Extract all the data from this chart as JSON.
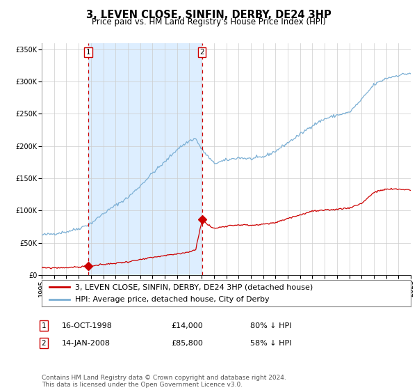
{
  "title": "3, LEVEN CLOSE, SINFIN, DERBY, DE24 3HP",
  "subtitle": "Price paid vs. HM Land Registry's House Price Index (HPI)",
  "x_start_year": 1995,
  "x_end_year": 2025,
  "ylim": [
    0,
    360000
  ],
  "yticks": [
    0,
    50000,
    100000,
    150000,
    200000,
    250000,
    300000,
    350000
  ],
  "ytick_labels": [
    "£0",
    "£50K",
    "£100K",
    "£150K",
    "£200K",
    "£250K",
    "£300K",
    "£350K"
  ],
  "sale1_date_year": 1998.79,
  "sale1_price": 14000,
  "sale2_date_year": 2008.04,
  "sale2_price": 85800,
  "sale1_label": "1",
  "sale2_label": "2",
  "legend_line1": "3, LEVEN CLOSE, SINFIN, DERBY, DE24 3HP (detached house)",
  "legend_line2": "HPI: Average price, detached house, City of Derby",
  "sale1_date_str": "16-OCT-1998",
  "sale2_date_str": "14-JAN-2008",
  "sale1_price_str": "£14,000",
  "sale2_price_str": "£85,800",
  "sale1_hpi_str": "80% ↓ HPI",
  "sale2_hpi_str": "58% ↓ HPI",
  "footer": "Contains HM Land Registry data © Crown copyright and database right 2024.\nThis data is licensed under the Open Government Licence v3.0.",
  "line1_color": "#cc0000",
  "line2_color": "#7bafd4",
  "shade_color": "#ddeeff",
  "vline_color": "#cc0000",
  "bg_color": "#ffffff",
  "grid_color": "#cccccc",
  "title_fontsize": 10.5,
  "subtitle_fontsize": 8.5,
  "tick_fontsize": 7,
  "legend_fontsize": 8,
  "footer_fontsize": 6.5,
  "hpi_waypoints_x": [
    1995,
    1996,
    1997,
    1998,
    1999,
    2000,
    2001,
    2002,
    2003,
    2004,
    2005,
    2006,
    2007,
    2007.5,
    2008,
    2009,
    2010,
    2011,
    2012,
    2013,
    2014,
    2015,
    2016,
    2017,
    2018,
    2019,
    2020,
    2021,
    2022,
    2023,
    2024,
    2025
  ],
  "hpi_waypoints_y": [
    62000,
    64000,
    67000,
    72000,
    80000,
    95000,
    108000,
    120000,
    138000,
    158000,
    175000,
    195000,
    208000,
    212000,
    195000,
    173000,
    178000,
    182000,
    180000,
    183000,
    192000,
    205000,
    218000,
    232000,
    242000,
    248000,
    252000,
    272000,
    295000,
    305000,
    310000,
    313000
  ],
  "red_waypoints_x": [
    1995,
    1996,
    1997,
    1998,
    1998.79,
    1999,
    2000,
    2001,
    2002,
    2003,
    2004,
    2005,
    2006,
    2007,
    2007.5,
    2008.04,
    2008.5,
    2009,
    2010,
    2011,
    2012,
    2013,
    2014,
    2015,
    2016,
    2017,
    2018,
    2019,
    2020,
    2021,
    2022,
    2023,
    2024,
    2025
  ],
  "red_waypoints_y": [
    10800,
    11000,
    11400,
    12200,
    14000,
    13600,
    16200,
    18300,
    20400,
    23500,
    27000,
    29800,
    32500,
    36000,
    38500,
    85800,
    78000,
    72000,
    76000,
    78000,
    77000,
    78500,
    81000,
    87800,
    93000,
    99000,
    100000,
    102000,
    104000,
    111000,
    128000,
    133000,
    133000,
    132000
  ]
}
